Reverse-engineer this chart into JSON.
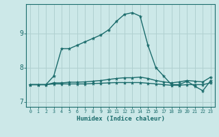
{
  "xlabel": "Humidex (Indice chaleur)",
  "bg_color": "#cce8e8",
  "grid_color": "#b0d0d0",
  "line_color": "#1a6b6b",
  "xlim": [
    -0.5,
    23.5
  ],
  "ylim": [
    6.85,
    9.85
  ],
  "yticks": [
    7,
    8,
    9
  ],
  "xticks": [
    0,
    1,
    2,
    3,
    4,
    5,
    6,
    7,
    8,
    9,
    10,
    11,
    12,
    13,
    14,
    15,
    16,
    17,
    18,
    19,
    20,
    21,
    22,
    23
  ],
  "series": [
    [
      7.5,
      7.5,
      7.5,
      7.75,
      8.55,
      8.55,
      8.65,
      8.75,
      8.85,
      8.95,
      9.1,
      9.35,
      9.55,
      9.6,
      9.5,
      8.65,
      8.0,
      7.75,
      7.5,
      7.5,
      7.6,
      7.45,
      7.32,
      7.62
    ],
    [
      7.5,
      7.5,
      7.5,
      7.55,
      7.55,
      7.57,
      7.57,
      7.58,
      7.6,
      7.62,
      7.65,
      7.68,
      7.7,
      7.7,
      7.72,
      7.68,
      7.62,
      7.58,
      7.55,
      7.58,
      7.62,
      7.6,
      7.58,
      7.72
    ],
    [
      7.5,
      7.5,
      7.5,
      7.52,
      7.52,
      7.52,
      7.52,
      7.52,
      7.53,
      7.54,
      7.55,
      7.56,
      7.56,
      7.56,
      7.56,
      7.54,
      7.52,
      7.5,
      7.48,
      7.48,
      7.5,
      7.5,
      7.5,
      7.55
    ]
  ],
  "linewidth": 1.0,
  "markersize": 3.5
}
